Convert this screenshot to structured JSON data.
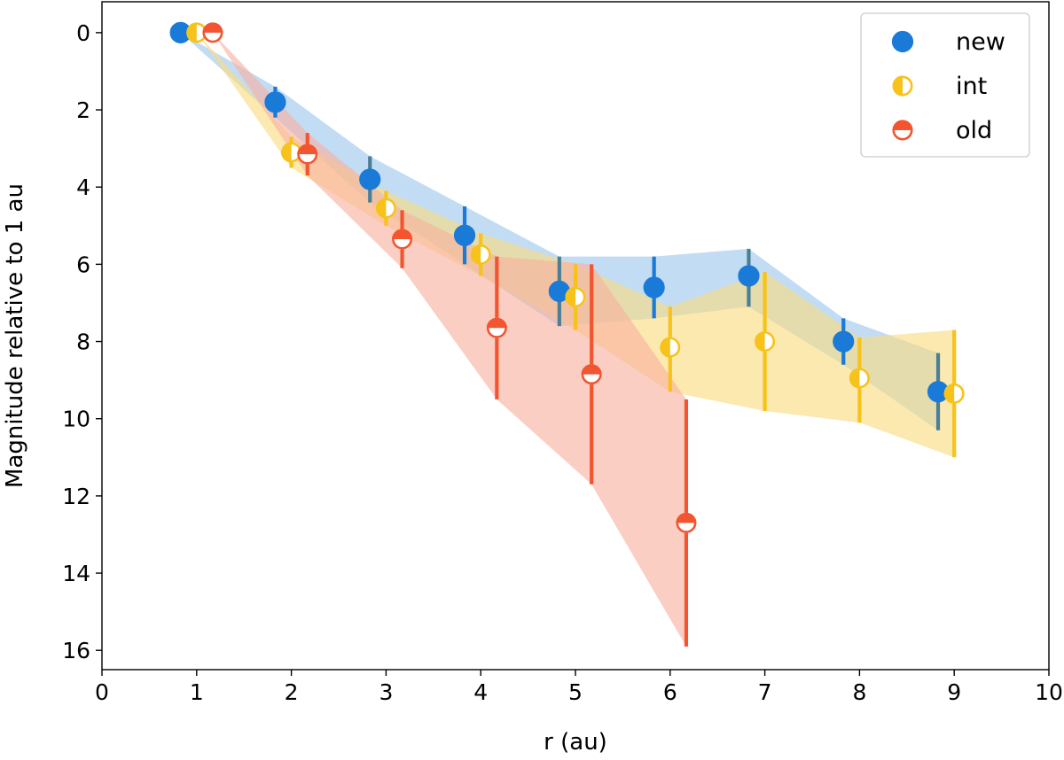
{
  "chart_data": {
    "type": "scatter",
    "xlabel": "r (au)",
    "ylabel": "Magnitude relative to 1 au",
    "xlim": [
      0,
      10
    ],
    "ylim": [
      16.5,
      -0.8
    ],
    "y_inverted": true,
    "xticks": [
      0,
      1,
      2,
      3,
      4,
      5,
      6,
      7,
      8,
      9,
      10
    ],
    "xtick_labels": [
      "0",
      "1",
      "2",
      "3",
      "4",
      "5",
      "6",
      "7",
      "8",
      "9",
      "10"
    ],
    "yticks": [
      0,
      2,
      4,
      6,
      8,
      10,
      12,
      14,
      16
    ],
    "ytick_labels": [
      "0",
      "2",
      "4",
      "6",
      "8",
      "10",
      "12",
      "14",
      "16"
    ],
    "legend_position": "top-right",
    "series": [
      {
        "name": "new",
        "marker": "full",
        "color": "#1a7ad8",
        "band_color": "#9cc6ee",
        "errbar_color": "#1a7ad8",
        "errbar_color_alt": "#4a7f95",
        "points": [
          {
            "x": 0.83,
            "y": 0.0,
            "lo": 0.0,
            "hi": 0.0
          },
          {
            "x": 1.83,
            "y": 1.8,
            "lo": 1.4,
            "hi": 2.2
          },
          {
            "x": 2.83,
            "y": 3.8,
            "lo": 3.2,
            "hi": 4.4
          },
          {
            "x": 3.83,
            "y": 5.25,
            "lo": 4.5,
            "hi": 6.0
          },
          {
            "x": 4.83,
            "y": 6.7,
            "lo": 5.8,
            "hi": 7.6
          },
          {
            "x": 5.83,
            "y": 6.6,
            "lo": 5.8,
            "hi": 7.4
          },
          {
            "x": 6.83,
            "y": 6.3,
            "lo": 5.6,
            "hi": 7.1
          },
          {
            "x": 7.83,
            "y": 8.0,
            "lo": 7.4,
            "hi": 8.6
          },
          {
            "x": 8.83,
            "y": 9.3,
            "lo": 8.3,
            "hi": 10.3
          }
        ]
      },
      {
        "name": "int",
        "marker": "half-left",
        "color": "#f7c21a",
        "band_color": "#f9dc80",
        "errbar_color": "#f7c21a",
        "points": [
          {
            "x": 1.0,
            "y": 0.0,
            "lo": 0.0,
            "hi": 0.0
          },
          {
            "x": 2.0,
            "y": 3.1,
            "lo": 2.7,
            "hi": 3.5
          },
          {
            "x": 3.0,
            "y": 4.55,
            "lo": 4.1,
            "hi": 5.0
          },
          {
            "x": 4.0,
            "y": 5.75,
            "lo": 5.2,
            "hi": 6.3
          },
          {
            "x": 5.0,
            "y": 6.85,
            "lo": 6.0,
            "hi": 7.7
          },
          {
            "x": 6.0,
            "y": 8.15,
            "lo": 7.1,
            "hi": 9.3
          },
          {
            "x": 7.0,
            "y": 8.0,
            "lo": 6.2,
            "hi": 9.8
          },
          {
            "x": 8.0,
            "y": 8.95,
            "lo": 7.9,
            "hi": 10.1
          },
          {
            "x": 9.0,
            "y": 9.35,
            "lo": 7.7,
            "hi": 11.0
          }
        ]
      },
      {
        "name": "old",
        "marker": "half-top",
        "color": "#f25530",
        "band_color": "#f8b0a0",
        "errbar_color": "#f25530",
        "points": [
          {
            "x": 1.17,
            "y": 0.0,
            "lo": 0.0,
            "hi": 0.0
          },
          {
            "x": 2.17,
            "y": 3.15,
            "lo": 2.6,
            "hi": 3.7
          },
          {
            "x": 3.17,
            "y": 5.35,
            "lo": 4.6,
            "hi": 6.1
          },
          {
            "x": 4.17,
            "y": 7.65,
            "lo": 5.8,
            "hi": 9.5
          },
          {
            "x": 5.17,
            "y": 8.85,
            "lo": 6.0,
            "hi": 11.7
          },
          {
            "x": 6.17,
            "y": 12.7,
            "lo": 9.5,
            "hi": 15.9
          }
        ]
      }
    ]
  }
}
